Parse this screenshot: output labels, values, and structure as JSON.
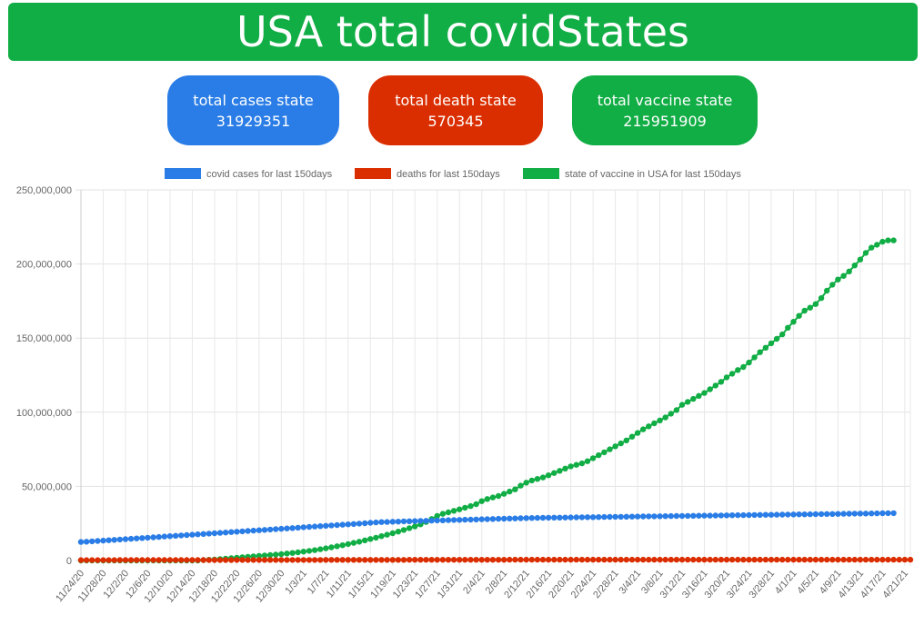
{
  "header": {
    "title": "USA total covidStates"
  },
  "cards": [
    {
      "label": "total cases state",
      "value": "31929351",
      "color": "#2a7de6"
    },
    {
      "label": "total death state",
      "value": "570345",
      "color": "#db2e00"
    },
    {
      "label": "total vaccine state",
      "value": "215951909",
      "color": "#11ad45"
    }
  ],
  "chart_data": {
    "type": "line",
    "title": "",
    "xlabel": "",
    "ylabel": "",
    "ylim": [
      0,
      250000000
    ],
    "y_ticks": [
      "250,000,000",
      "200,000,000",
      "150,000,000",
      "100,000,000",
      "50,000,000",
      "0"
    ],
    "grid": true,
    "legend_position": "top",
    "x_tick_labels": [
      "11/24/20",
      "11/28/20",
      "12/2/20",
      "12/6/20",
      "12/10/20",
      "12/14/20",
      "12/18/20",
      "12/22/20",
      "12/26/20",
      "12/30/20",
      "1/3/21",
      "1/7/21",
      "1/11/21",
      "1/15/21",
      "1/19/21",
      "1/23/21",
      "1/27/21",
      "1/31/21",
      "2/4/21",
      "2/8/21",
      "2/12/21",
      "2/16/21",
      "2/20/21",
      "2/24/21",
      "2/28/21",
      "3/4/21",
      "3/8/21",
      "3/12/21",
      "3/16/21",
      "3/20/21",
      "3/24/21",
      "3/28/21",
      "4/1/21",
      "4/5/21",
      "4/9/21",
      "4/13/21",
      "4/17/21",
      "4/21/21"
    ],
    "x_start": "11/24/20",
    "x_end": "4/22/21",
    "series": [
      {
        "name": "covid cases for last 150days",
        "color": "#2a7de6",
        "values": [
          12500000,
          12700000,
          12900000,
          13150000,
          13400000,
          13650000,
          13900000,
          14150000,
          14400000,
          14650000,
          14900000,
          15150000,
          15400000,
          15650000,
          15900000,
          16150000,
          16400000,
          16650000,
          16900000,
          17150000,
          17400000,
          17650000,
          17900000,
          18150000,
          18400000,
          18650000,
          18900000,
          19150000,
          19400000,
          19650000,
          19900000,
          20150000,
          20400000,
          20650000,
          20900000,
          21150000,
          21400000,
          21650000,
          21900000,
          22150000,
          22400000,
          22650000,
          22900000,
          23150000,
          23400000,
          23650000,
          23900000,
          24150000,
          24400000,
          24650000,
          24900000,
          25150000,
          25400000,
          25650000,
          25900000,
          26000000,
          26150000,
          26250000,
          26400000,
          26500000,
          26600000,
          26700000,
          26800000,
          26900000,
          27000000,
          27100000,
          27200000,
          27300000,
          27400000,
          27500000,
          27600000,
          27700000,
          27800000,
          27900000,
          28000000,
          28100000,
          28200000,
          28300000,
          28400000,
          28500000,
          28600000,
          28700000,
          28750000,
          28800000,
          28850000,
          28900000,
          28950000,
          29000000,
          29050000,
          29100000,
          29150000,
          29200000,
          29250000,
          29300000,
          29350000,
          29400000,
          29450000,
          29500000,
          29550000,
          29600000,
          29650000,
          29700000,
          29750000,
          29800000,
          29850000,
          29900000,
          29950000,
          30000000,
          30050000,
          30100000,
          30150000,
          30200000,
          30250000,
          30300000,
          30350000,
          30400000,
          30450000,
          30500000,
          30550000,
          30600000,
          30650000,
          30700000,
          30750000,
          30800000,
          30850000,
          30900000,
          30950000,
          31000000,
          31050000,
          31100000,
          31150000,
          31200000,
          31250000,
          31300000,
          31350000,
          31400000,
          31450000,
          31500000,
          31550000,
          31600000,
          31650000,
          31700000,
          31750000,
          31800000,
          31850000,
          31900000,
          31929351
        ]
      },
      {
        "name": "deaths for last 150days",
        "color": "#db2e00",
        "values": [
          260000,
          262000,
          264000,
          266000,
          268000,
          271000,
          274000,
          277000,
          280000,
          283000,
          286000,
          289000,
          292000,
          295000,
          298000,
          301000,
          304000,
          307000,
          310000,
          313000,
          316000,
          319000,
          322000,
          325000,
          328000,
          331000,
          334000,
          337000,
          340000,
          343000,
          346000,
          349000,
          352000,
          356000,
          360000,
          364000,
          368000,
          372000,
          376000,
          380000,
          384000,
          388000,
          392000,
          396000,
          400000,
          404000,
          408000,
          412000,
          416000,
          420000,
          424000,
          428000,
          432000,
          436000,
          440000,
          444000,
          448000,
          452000,
          456000,
          460000,
          464000,
          468000,
          472000,
          476000,
          480000,
          484000,
          488000,
          492000,
          496000,
          500000,
          503000,
          506000,
          509000,
          512000,
          515000,
          517000,
          519000,
          521000,
          523000,
          525000,
          527000,
          529000,
          531000,
          533000,
          535000,
          537000,
          538500,
          540000,
          541500,
          543000,
          544500,
          546000,
          547500,
          549000,
          550000,
          551000,
          552000,
          553000,
          554000,
          555000,
          556000,
          557000,
          558000,
          559000,
          559500,
          560000,
          560500,
          561000,
          561500,
          562000,
          562500,
          563000,
          563500,
          564000,
          564500,
          565000,
          565500,
          566000,
          566500,
          567000,
          567400,
          567800,
          568200,
          568600,
          569000,
          569300,
          569600,
          569900,
          570100,
          570200,
          570300,
          570345,
          570345,
          570345,
          570345,
          570345,
          570345,
          570345,
          570345,
          570345,
          570345,
          570345,
          570345,
          570345,
          570345,
          570345,
          570345,
          570345,
          570345,
          570345
        ]
      },
      {
        "name": "state of vaccine in USA for last 150days",
        "color": "#11ad45",
        "values": [
          0,
          0,
          0,
          0,
          0,
          0,
          0,
          0,
          0,
          0,
          0,
          0,
          0,
          0,
          0,
          0,
          0,
          0,
          0,
          0,
          0,
          0,
          300000,
          500000,
          700000,
          1000000,
          1300000,
          1600000,
          1900000,
          2200000,
          2500000,
          2800000,
          3100000,
          3400000,
          3700000,
          4000000,
          4300000,
          4700000,
          5100000,
          5500000,
          6000000,
          6500000,
          7000000,
          7600000,
          8200000,
          8900000,
          9600000,
          10300000,
          11100000,
          11900000,
          12700000,
          13600000,
          14500000,
          15400000,
          16400000,
          17400000,
          18400000,
          19500000,
          20600000,
          21800000,
          23000000,
          24400000,
          26000000,
          28000000,
          30000000,
          31500000,
          32500000,
          33500000,
          34500000,
          35600000,
          36700000,
          38000000,
          40000000,
          41500000,
          42500000,
          43500000,
          45000000,
          46500000,
          48000000,
          50500000,
          52500000,
          54000000,
          55000000,
          56000000,
          57500000,
          59000000,
          60500000,
          62000000,
          63500000,
          64500000,
          65500000,
          67000000,
          69000000,
          71000000,
          73000000,
          75000000,
          77000000,
          79000000,
          81000000,
          83500000,
          86000000,
          88500000,
          90500000,
          92500000,
          94500000,
          96500000,
          99000000,
          101500000,
          105000000,
          107000000,
          109000000,
          111000000,
          113000000,
          115500000,
          118000000,
          120500000,
          123500000,
          126000000,
          128500000,
          130500000,
          133500000,
          137000000,
          140500000,
          143500000,
          146500000,
          149500000,
          152500000,
          157000000,
          161000000,
          165000000,
          168500000,
          170500000,
          173000000,
          177000000,
          182000000,
          186000000,
          189500000,
          192000000,
          195000000,
          199000000,
          203000000,
          207500000,
          211000000,
          213000000,
          215000000,
          215951909,
          215951909
        ]
      }
    ]
  }
}
